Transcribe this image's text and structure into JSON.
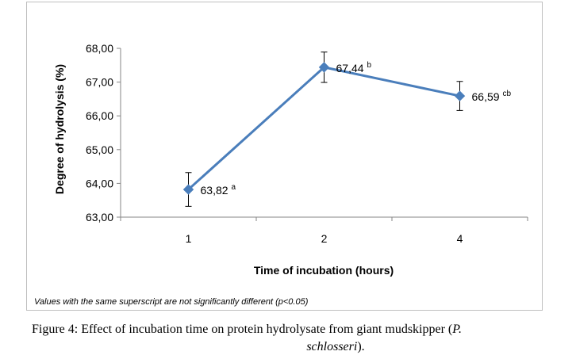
{
  "chart_data": {
    "type": "line",
    "title": "",
    "xlabel": "Time of incubation (hours)",
    "ylabel": "Degree of hydrolysis (%)",
    "categories": [
      "1",
      "2",
      "4"
    ],
    "series": [
      {
        "values": [
          63.82,
          67.44,
          66.59
        ],
        "errors": [
          0.5,
          0.45,
          0.43
        ],
        "labels": [
          "63,82",
          "67,44",
          "66,59"
        ],
        "superscripts": [
          "a",
          "b",
          "cb"
        ],
        "color": "#4a7ebb"
      }
    ],
    "ylim": [
      63.0,
      68.0
    ],
    "yticks": [
      63.0,
      64.0,
      65.0,
      66.0,
      67.0,
      68.0
    ],
    "ytick_labels": [
      "63,00",
      "64,00",
      "65,00",
      "66,00",
      "67,00",
      "68,00"
    ],
    "grid": false,
    "legend": "none"
  },
  "footnote": "Values with the same superscript are not significantly different (p<0.05)",
  "caption": {
    "prefix": "Figure 4: Effect of incubation time on protein hydrolysate from giant mudskipper (",
    "species_genus": "P.",
    "species_epithet": "schlosseri",
    "suffix": ")."
  }
}
